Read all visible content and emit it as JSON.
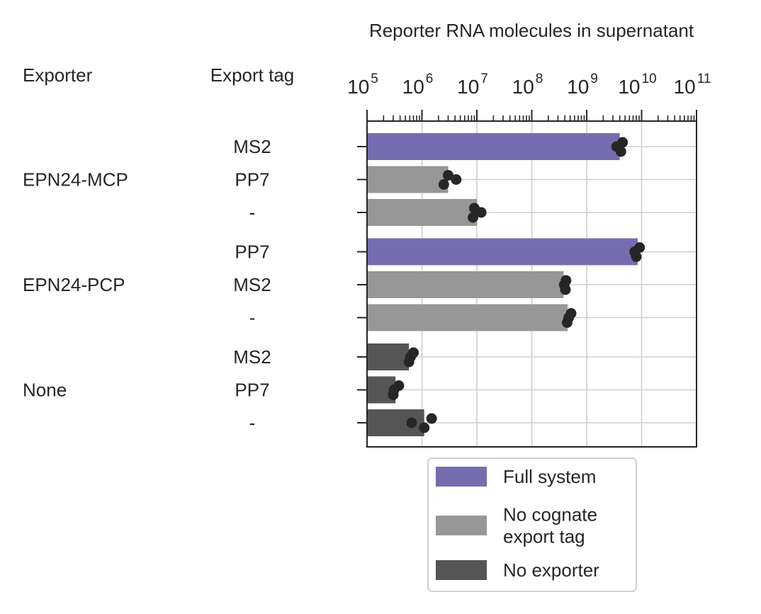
{
  "chart_data": {
    "type": "bar",
    "orientation": "horizontal",
    "xscale": "log",
    "title": "Reporter RNA molecules in supernatant",
    "xlabel": "",
    "ylabel": "",
    "xlim": [
      100000,
      100000000000
    ],
    "grid": true,
    "column_headers": {
      "exporter": "Exporter",
      "tag": "Export tag"
    },
    "tick_labels": [
      {
        "base": "10",
        "exp": "5",
        "value": 100000
      },
      {
        "base": "10",
        "exp": "6",
        "value": 1000000
      },
      {
        "base": "10",
        "exp": "7",
        "value": 10000000
      },
      {
        "base": "10",
        "exp": "8",
        "value": 100000000
      },
      {
        "base": "10",
        "exp": "9",
        "value": 1000000000
      },
      {
        "base": "10",
        "exp": "10",
        "value": 10000000000
      },
      {
        "base": "10",
        "exp": "11",
        "value": 100000000000
      }
    ],
    "groups": [
      {
        "exporter": "EPN24-MCP",
        "rows": [
          {
            "tag": "MS2",
            "condition": "Full system",
            "value": 4000000000,
            "replicates": [
              4500000000,
              3500000000,
              4200000000
            ]
          },
          {
            "tag": "PP7",
            "condition": "No cognate export tag",
            "value": 3000000,
            "replicates": [
              3000000,
              4200000,
              2500000
            ]
          },
          {
            "tag": "-",
            "condition": "No cognate export tag",
            "value": 10000000,
            "replicates": [
              9000000,
              12000000,
              8500000
            ]
          }
        ]
      },
      {
        "exporter": "EPN24-PCP",
        "rows": [
          {
            "tag": "PP7",
            "condition": "Full system",
            "value": 8500000000,
            "replicates": [
              9200000000,
              7500000000,
              8000000000
            ]
          },
          {
            "tag": "MS2",
            "condition": "No cognate export tag",
            "value": 380000000,
            "replicates": [
              420000000,
              390000000,
              410000000
            ]
          },
          {
            "tag": "-",
            "condition": "No cognate export tag",
            "value": 450000000,
            "replicates": [
              520000000,
              470000000,
              440000000
            ]
          }
        ]
      },
      {
        "exporter": "None",
        "rows": [
          {
            "tag": "MS2",
            "condition": "No exporter",
            "value": 580000,
            "replicates": [
              700000,
              620000,
              580000
            ]
          },
          {
            "tag": "PP7",
            "condition": "No exporter",
            "value": 330000,
            "replicates": [
              380000,
              310000,
              300000
            ]
          },
          {
            "tag": "-",
            "condition": "No exporter",
            "value": 1100000,
            "replicates": [
              1500000,
              650000,
              1100000
            ]
          }
        ]
      }
    ],
    "legend": {
      "placement": "below",
      "entries": [
        {
          "condition": "Full system",
          "lines": [
            "Full system"
          ],
          "color": "#766db0"
        },
        {
          "condition": "No cognate export tag",
          "lines": [
            "No cognate",
            "export tag"
          ],
          "color": "#979797"
        },
        {
          "condition": "No exporter",
          "lines": [
            "No exporter"
          ],
          "color": "#555555"
        }
      ]
    },
    "point_color": "#262626",
    "grid_color": "#cfcfcf",
    "axis_color": "#262626"
  }
}
